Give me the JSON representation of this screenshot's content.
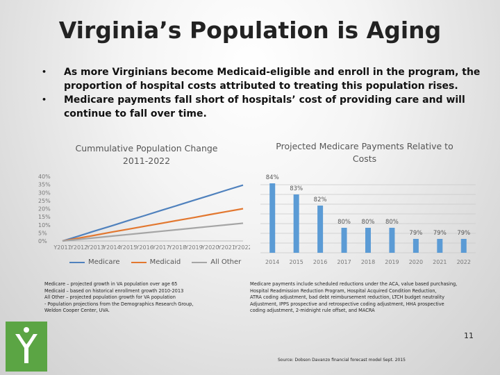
{
  "slide": {
    "title": "Virginia’s Population is Aging",
    "bullets": [
      "As more Virginians become Medicaid-eligible and enroll in the program, the proportion of hospital costs attributed to treating this population rises.",
      "Medicare payments fall short of hospitals’ cost of providing care and will continue to fall over time."
    ],
    "bullet_glyph": "•",
    "page_number": "11",
    "source": "Source: Dobson Davanzo financial forecast model Sept. 2015"
  },
  "chart_data": [
    {
      "type": "line",
      "title": "Cummulative Population Change 2011-2022",
      "x": [
        "Y2011",
        "Y2012",
        "Y2013",
        "Y2014",
        "Y2015",
        "Y2016",
        "Y2017",
        "Y2018",
        "Y2019",
        "Y2020",
        "Y2021",
        "Y2022"
      ],
      "y_ticks": [
        "0%",
        "5%",
        "10%",
        "15%",
        "20%",
        "25%",
        "30%",
        "35%",
        "40%"
      ],
      "ylim": [
        0,
        40
      ],
      "series": [
        {
          "name": "Medicare",
          "color": "#4f81bd",
          "values": [
            0,
            3.1,
            6.3,
            9.4,
            12.6,
            15.7,
            18.9,
            22.0,
            25.2,
            28.3,
            31.5,
            34.6
          ]
        },
        {
          "name": "Medicaid",
          "color": "#e2772f",
          "values": [
            0,
            1.8,
            3.6,
            5.5,
            7.3,
            9.1,
            10.9,
            12.7,
            14.5,
            16.4,
            18.2,
            20.0
          ]
        },
        {
          "name": "All Other",
          "color": "#a5a5a5",
          "values": [
            0,
            1.0,
            2.0,
            3.0,
            4.0,
            5.0,
            6.0,
            7.0,
            8.0,
            9.0,
            10.0,
            11.0
          ]
        }
      ],
      "legend_position": "bottom",
      "grid": false
    },
    {
      "type": "bar",
      "title": "Projected Medicare Payments Relative to Costs",
      "categories": [
        "2014",
        "2015",
        "2016",
        "2017",
        "2018",
        "2019",
        "2020",
        "2021",
        "2022"
      ],
      "values": [
        84,
        83,
        82,
        80,
        80,
        80,
        79,
        79,
        79
      ],
      "labels": [
        "84%",
        "83%",
        "82%",
        "80%",
        "80%",
        "80%",
        "79%",
        "79%",
        "79%"
      ],
      "color": "#5b9bd5",
      "grid": true
    }
  ],
  "notes": {
    "left": [
      "Medicare – projected growth in VA population over age 65",
      "Medicaid – based on historical enrollment growth 2010-2013",
      "All Other – projected population growth for VA population",
      "- Population projections from the Demographics Research Group,",
      "  Weldon Cooper Center, UVA."
    ],
    "right": [
      "Medicare payments include scheduled reductions under the ACA, value based purchasing,",
      "Hospital Readmission Reduction Program, Hospital Acquired Condition Reduction,",
      "ATRA coding adjustment, bad debt reimbursement reduction, LTCH budget neutrality",
      "Adjustment, IPPS prospective and retrospective coding adjustment, HHA prospective",
      "coding adjustment, 2-midnight rule offset, and MACRA"
    ]
  }
}
